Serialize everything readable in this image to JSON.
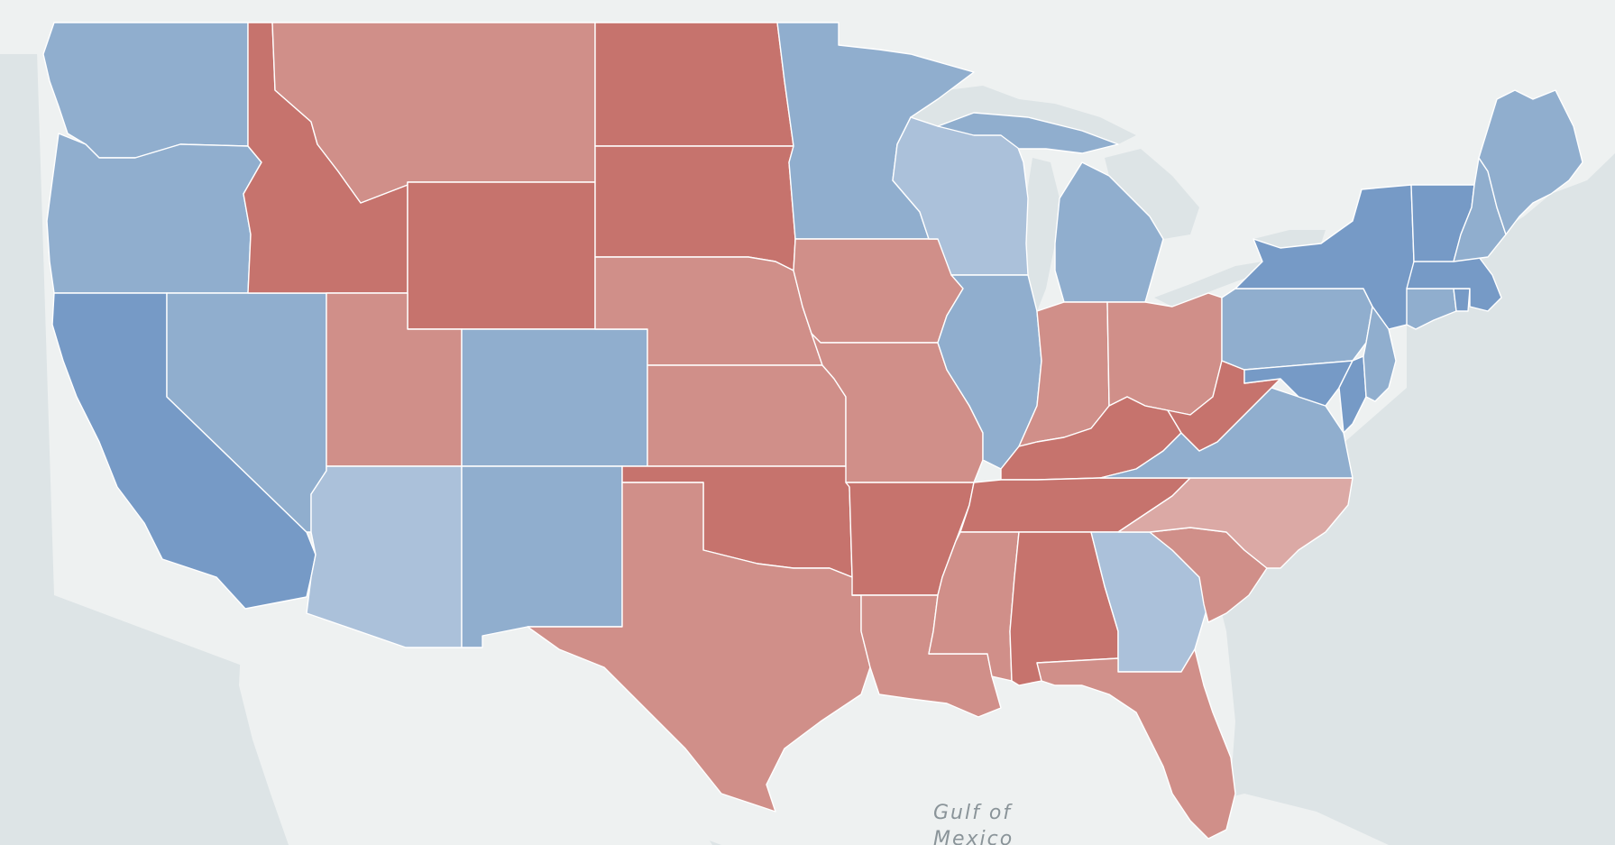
{
  "map": {
    "water_label_line1": "Gulf of",
    "water_label_line2": "Mexico",
    "colors": {
      "water": "#dde4e6",
      "land": "#eef1f1",
      "strong_rep": "#c6736d",
      "lean_rep": "#d08f89",
      "tilt_rep": "#dba9a5",
      "tilt_dem": "#abc1da",
      "lean_dem": "#90aece",
      "strong_dem": "#769ac6"
    },
    "states": [
      {
        "id": "WA",
        "level": "lean_dem"
      },
      {
        "id": "OR",
        "level": "lean_dem"
      },
      {
        "id": "CA",
        "level": "strong_dem"
      },
      {
        "id": "NV",
        "level": "lean_dem"
      },
      {
        "id": "ID",
        "level": "strong_rep"
      },
      {
        "id": "MT",
        "level": "lean_rep"
      },
      {
        "id": "WY",
        "level": "strong_rep"
      },
      {
        "id": "UT",
        "level": "lean_rep"
      },
      {
        "id": "CO",
        "level": "lean_dem"
      },
      {
        "id": "AZ",
        "level": "tilt_dem"
      },
      {
        "id": "NM",
        "level": "lean_dem"
      },
      {
        "id": "ND",
        "level": "strong_rep"
      },
      {
        "id": "SD",
        "level": "strong_rep"
      },
      {
        "id": "NE",
        "level": "lean_rep"
      },
      {
        "id": "KS",
        "level": "lean_rep"
      },
      {
        "id": "OK",
        "level": "strong_rep"
      },
      {
        "id": "TX",
        "level": "lean_rep"
      },
      {
        "id": "MN",
        "level": "lean_dem"
      },
      {
        "id": "IA",
        "level": "lean_rep"
      },
      {
        "id": "MO",
        "level": "lean_rep"
      },
      {
        "id": "AR",
        "level": "strong_rep"
      },
      {
        "id": "LA",
        "level": "lean_rep"
      },
      {
        "id": "WI",
        "level": "tilt_dem"
      },
      {
        "id": "IL",
        "level": "lean_dem"
      },
      {
        "id": "MI",
        "level": "lean_dem"
      },
      {
        "id": "IN",
        "level": "lean_rep"
      },
      {
        "id": "OH",
        "level": "lean_rep"
      },
      {
        "id": "KY",
        "level": "strong_rep"
      },
      {
        "id": "TN",
        "level": "strong_rep"
      },
      {
        "id": "MS",
        "level": "lean_rep"
      },
      {
        "id": "AL",
        "level": "strong_rep"
      },
      {
        "id": "GA",
        "level": "tilt_dem"
      },
      {
        "id": "FL",
        "level": "lean_rep"
      },
      {
        "id": "SC",
        "level": "lean_rep"
      },
      {
        "id": "NC",
        "level": "tilt_rep"
      },
      {
        "id": "VA",
        "level": "lean_dem"
      },
      {
        "id": "WV",
        "level": "strong_rep"
      },
      {
        "id": "PA",
        "level": "lean_dem"
      },
      {
        "id": "NY",
        "level": "strong_dem"
      },
      {
        "id": "MD",
        "level": "strong_dem"
      },
      {
        "id": "DE",
        "level": "strong_dem"
      },
      {
        "id": "NJ",
        "level": "lean_dem"
      },
      {
        "id": "CT",
        "level": "lean_dem"
      },
      {
        "id": "RI",
        "level": "strong_dem"
      },
      {
        "id": "MA",
        "level": "strong_dem"
      },
      {
        "id": "VT",
        "level": "strong_dem"
      },
      {
        "id": "NH",
        "level": "lean_dem"
      },
      {
        "id": "ME",
        "level": "lean_dem"
      }
    ]
  }
}
